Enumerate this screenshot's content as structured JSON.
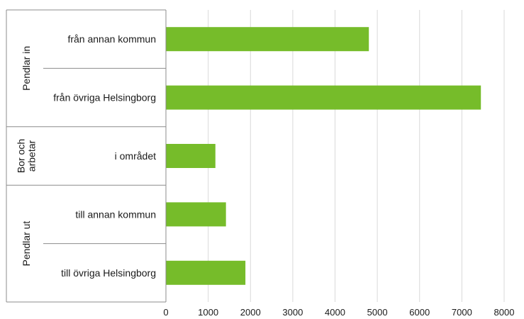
{
  "chart_data": {
    "type": "bar",
    "orientation": "horizontal",
    "title": "",
    "xlabel": "",
    "ylabel": "",
    "xlim": [
      0,
      8000
    ],
    "xticks": [
      0,
      1000,
      2000,
      3000,
      4000,
      5000,
      6000,
      7000,
      8000
    ],
    "grid": true,
    "legend": "none",
    "bar_color": "#76bc2a",
    "categories": [
      "från annan kommun",
      "från övriga Helsingborg",
      "i området",
      "till annan kommun",
      "till övriga Helsingborg"
    ],
    "values": [
      4800,
      7450,
      1170,
      1420,
      1880
    ],
    "groups": [
      {
        "label": "Pendlar in",
        "members": [
          0,
          1
        ]
      },
      {
        "label": "Bor och\narbetar",
        "members": [
          2
        ]
      },
      {
        "label": "Pendlar ut",
        "members": [
          3,
          4
        ]
      }
    ]
  }
}
